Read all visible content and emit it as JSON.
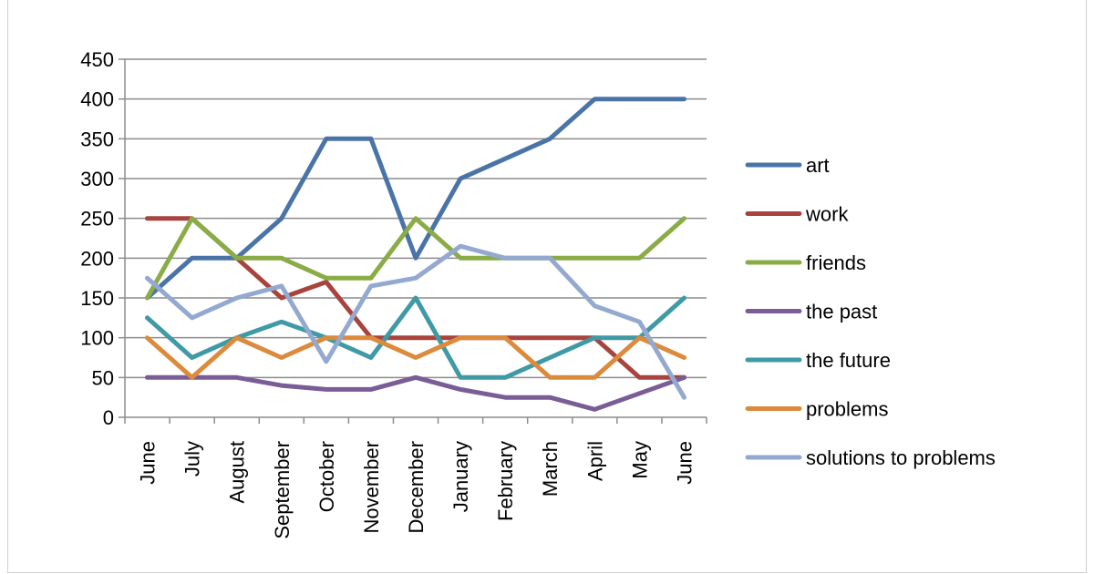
{
  "chart_data": {
    "type": "line",
    "title": "",
    "xlabel": "",
    "ylabel": "",
    "categories": [
      "June",
      "July",
      "August",
      "September",
      "October",
      "November",
      "December",
      "January",
      "February",
      "March",
      "April",
      "May",
      "June"
    ],
    "ylim": [
      0,
      450
    ],
    "yticks": [
      "0",
      "50",
      "100",
      "150",
      "200",
      "250",
      "300",
      "350",
      "400",
      "450"
    ],
    "ytick_values": [
      0,
      50,
      100,
      150,
      200,
      250,
      300,
      350,
      400,
      450
    ],
    "grid": "horizontal",
    "legend_position": "right",
    "series": [
      {
        "name": "art",
        "color": "#4a74a8",
        "values": [
          150,
          200,
          200,
          250,
          350,
          350,
          200,
          300,
          325,
          350,
          400,
          400,
          400
        ]
      },
      {
        "name": "work",
        "color": "#a8433e",
        "values": [
          250,
          250,
          200,
          150,
          170,
          100,
          100,
          100,
          100,
          100,
          100,
          50,
          50
        ]
      },
      {
        "name": "friends",
        "color": "#8aac47",
        "values": [
          150,
          250,
          200,
          200,
          175,
          175,
          250,
          200,
          200,
          200,
          200,
          200,
          250
        ]
      },
      {
        "name": "the past",
        "color": "#7a5c96",
        "values": [
          50,
          50,
          50,
          40,
          35,
          35,
          50,
          35,
          25,
          25,
          10,
          30,
          50
        ]
      },
      {
        "name": "the future",
        "color": "#3f9aa6",
        "values": [
          125,
          75,
          100,
          120,
          100,
          75,
          150,
          50,
          50,
          75,
          100,
          100,
          150
        ]
      },
      {
        "name": "problems",
        "color": "#dc8a3c",
        "values": [
          100,
          50,
          100,
          75,
          100,
          100,
          75,
          100,
          100,
          50,
          50,
          100,
          75
        ]
      },
      {
        "name": "solutions to problems",
        "color": "#93a9cf",
        "values": [
          175,
          125,
          150,
          165,
          70,
          165,
          175,
          215,
          200,
          200,
          140,
          120,
          25
        ]
      }
    ]
  }
}
